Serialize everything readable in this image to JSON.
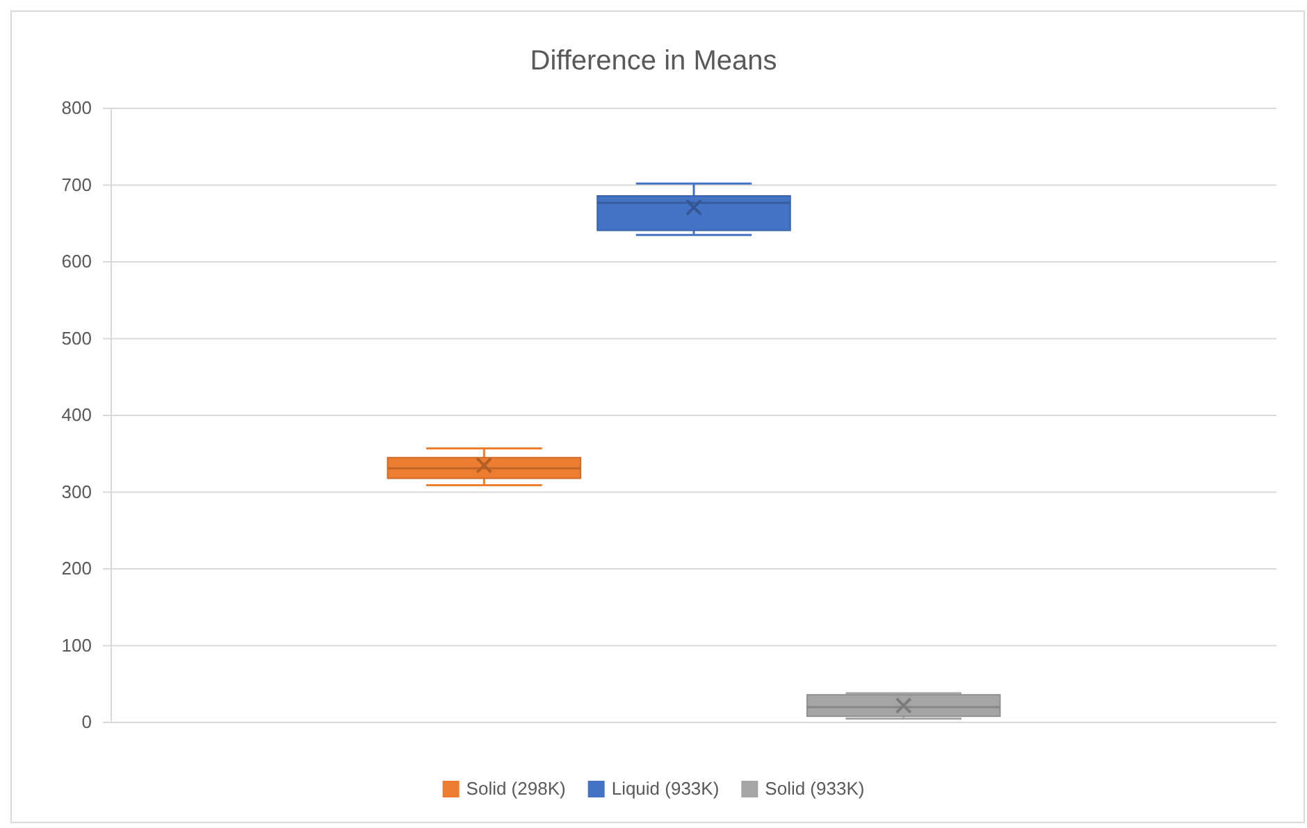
{
  "chart_data": {
    "type": "box",
    "title": "Difference in Means",
    "categories": [
      null
    ],
    "series": [
      {
        "name": "Solid (298K)",
        "color": "#ed7d31",
        "boxes": [
          {
            "low": 309,
            "q1": 318,
            "median": 331,
            "q3": 345,
            "high": 357,
            "mean": 335
          }
        ]
      },
      {
        "name": "Liquid (933K)",
        "color": "#4472c4",
        "boxes": [
          {
            "low": 635,
            "q1": 641,
            "median": 677,
            "q3": 686,
            "high": 702,
            "mean": 671
          }
        ]
      },
      {
        "name": "Solid (933K)",
        "color": "#a5a5a5",
        "boxes": [
          {
            "low": 5,
            "q1": 8,
            "median": 20,
            "q3": 36,
            "high": 38,
            "mean": 22
          }
        ]
      }
    ],
    "ylim": [
      0,
      800
    ],
    "yticks": [
      0,
      100,
      200,
      300,
      400,
      500,
      600,
      700,
      800
    ],
    "grid": "y",
    "legend": "bottom"
  }
}
